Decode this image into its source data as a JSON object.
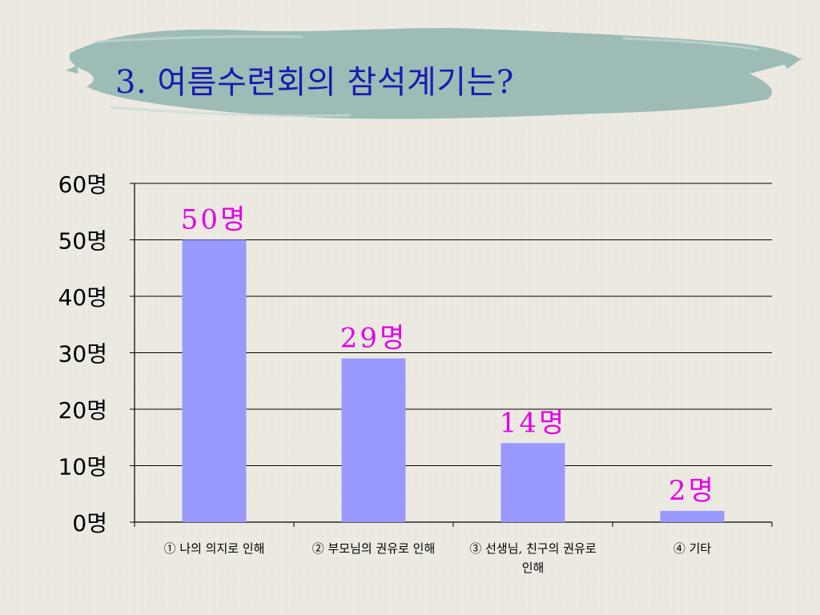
{
  "title": "3. 여름수련회의 참석계기는?",
  "colors": {
    "background": "#ece9e1",
    "brush": "#9dbcb6",
    "title": "#1a1ab0",
    "bar": "#9999ff",
    "data_label": "#e600e6",
    "axis_text": "#000000"
  },
  "chart_data": {
    "type": "bar",
    "categories": [
      [
        "① 나의 의지로 인해"
      ],
      [
        "② 부모님의 권유로 인해"
      ],
      [
        "③ 선생님, 친구의 권유로",
        "인해"
      ],
      [
        "④ 기타"
      ]
    ],
    "values": [
      50,
      29,
      14,
      2
    ],
    "data_labels": [
      "50명",
      "29명",
      "14명",
      "2명"
    ],
    "y_ticks": [
      "0명",
      "10명",
      "20명",
      "30명",
      "40명",
      "50명",
      "60명"
    ],
    "ylim": [
      0,
      60
    ],
    "y_step": 10,
    "grid": true,
    "legend": "none"
  }
}
